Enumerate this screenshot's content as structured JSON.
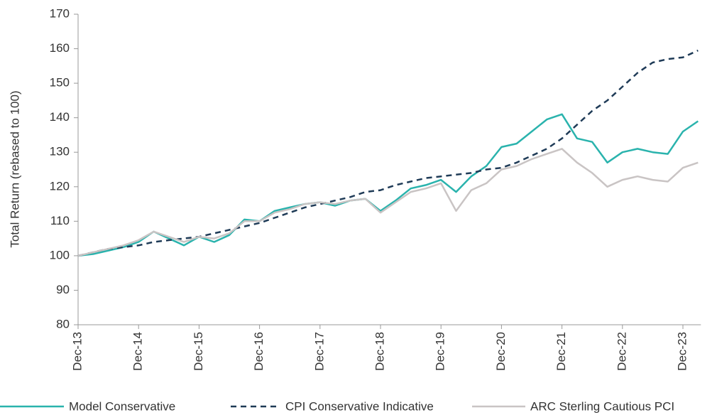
{
  "chart_data": {
    "type": "line",
    "y_label": "Total Return (rebased to 100)",
    "categories": [
      "Dec-13",
      null,
      null,
      null,
      "Dec-14",
      null,
      null,
      null,
      "Dec-15",
      null,
      null,
      null,
      "Dec-16",
      null,
      null,
      null,
      "Dec-17",
      null,
      null,
      null,
      "Dec-18",
      null,
      null,
      null,
      "Dec-19",
      null,
      null,
      null,
      "Dec-20",
      null,
      null,
      null,
      "Dec-21",
      null,
      null,
      null,
      "Dec-22",
      null,
      null,
      null,
      "Dec-23",
      null
    ],
    "series": [
      {
        "name": "Model Conservative",
        "color": "#2ab3ad",
        "dashed": false,
        "values": [
          100,
          100.5,
          101.5,
          102.5,
          104,
          107,
          105,
          103,
          105.5,
          104,
          106,
          110.5,
          110,
          113,
          114,
          115,
          115.5,
          114.5,
          116,
          116.5,
          113,
          116,
          119.5,
          120.5,
          122,
          118.5,
          123,
          126,
          131.5,
          132.5,
          136,
          139.5,
          141,
          134,
          133,
          127,
          130,
          131,
          130,
          129.5,
          136,
          139
        ]
      },
      {
        "name": "CPI Conservative Indicative",
        "color": "#1f3b57",
        "dashed": true,
        "values": [
          100,
          101,
          102,
          102.5,
          103,
          104,
          104.5,
          105,
          105.5,
          106.5,
          107.5,
          108.5,
          109.5,
          111,
          112.5,
          114,
          115,
          116,
          117,
          118.5,
          119,
          120.5,
          121.5,
          122.5,
          123,
          123.5,
          124,
          125,
          125.5,
          127,
          129,
          131,
          134,
          138,
          142,
          145,
          149,
          153,
          156,
          157,
          157.5,
          159.5
        ]
      },
      {
        "name": "ARC Sterling Cautious PCI",
        "color": "#c9c4c4",
        "dashed": false,
        "values": [
          100,
          101,
          102,
          103,
          104.5,
          107,
          105.5,
          104,
          105.5,
          105,
          106.5,
          110,
          110,
          112.5,
          113.5,
          115,
          115.5,
          115,
          116,
          116.5,
          112.5,
          115.5,
          118.5,
          119.5,
          121,
          113,
          119,
          121,
          125,
          126,
          128,
          129.5,
          131,
          127,
          124,
          120,
          122,
          123,
          122,
          121.5,
          125.5,
          127
        ]
      }
    ],
    "ylim": [
      80,
      170
    ],
    "yticks": [
      80,
      90,
      100,
      110,
      120,
      130,
      140,
      150,
      160,
      170
    ],
    "grid": false
  }
}
